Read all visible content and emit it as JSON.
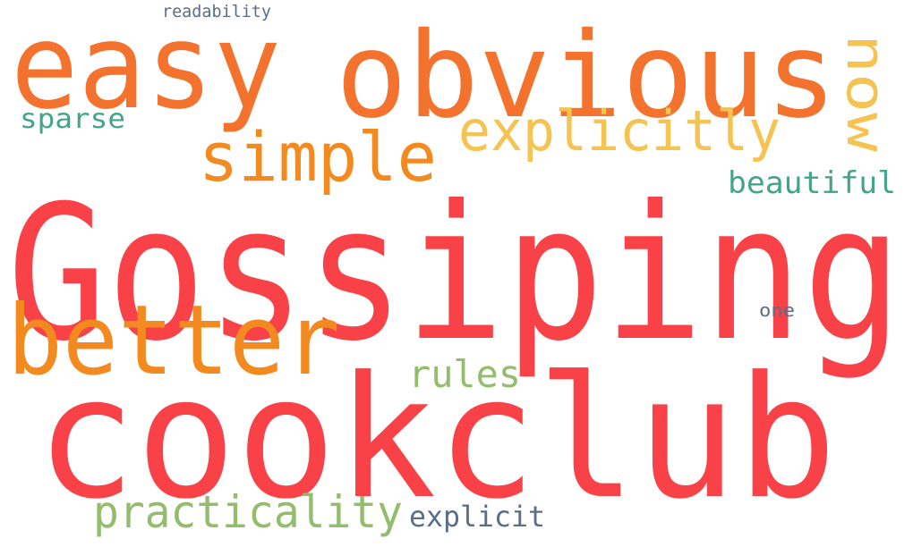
{
  "colors": {
    "red": "#f84248",
    "orange_deep": "#f28a20",
    "orange": "#f3732e",
    "yellow": "#f4c351",
    "teal": "#43a587",
    "green": "#94bc6d",
    "slate": "#5a6d8a"
  },
  "words": [
    {
      "text": "Gossiping",
      "color": "#f84248"
    },
    {
      "text": "cookclub",
      "color": "#f84248"
    },
    {
      "text": "easy",
      "color": "#f3732e"
    },
    {
      "text": "obvious",
      "color": "#f3732e"
    },
    {
      "text": "better",
      "color": "#f28a20"
    },
    {
      "text": "simple",
      "color": "#f28a20"
    },
    {
      "text": "explicitly",
      "color": "#f4c351"
    },
    {
      "text": "now",
      "color": "#f4c351"
    },
    {
      "text": "practicality",
      "color": "#94bc6d"
    },
    {
      "text": "rules",
      "color": "#94bc6d"
    },
    {
      "text": "beautiful",
      "color": "#43a587"
    },
    {
      "text": "sparse",
      "color": "#43a587"
    },
    {
      "text": "explicit",
      "color": "#5a6d8a"
    },
    {
      "text": "readability",
      "color": "#5a6d8a"
    },
    {
      "text": "one",
      "color": "#5a6d8a"
    }
  ]
}
